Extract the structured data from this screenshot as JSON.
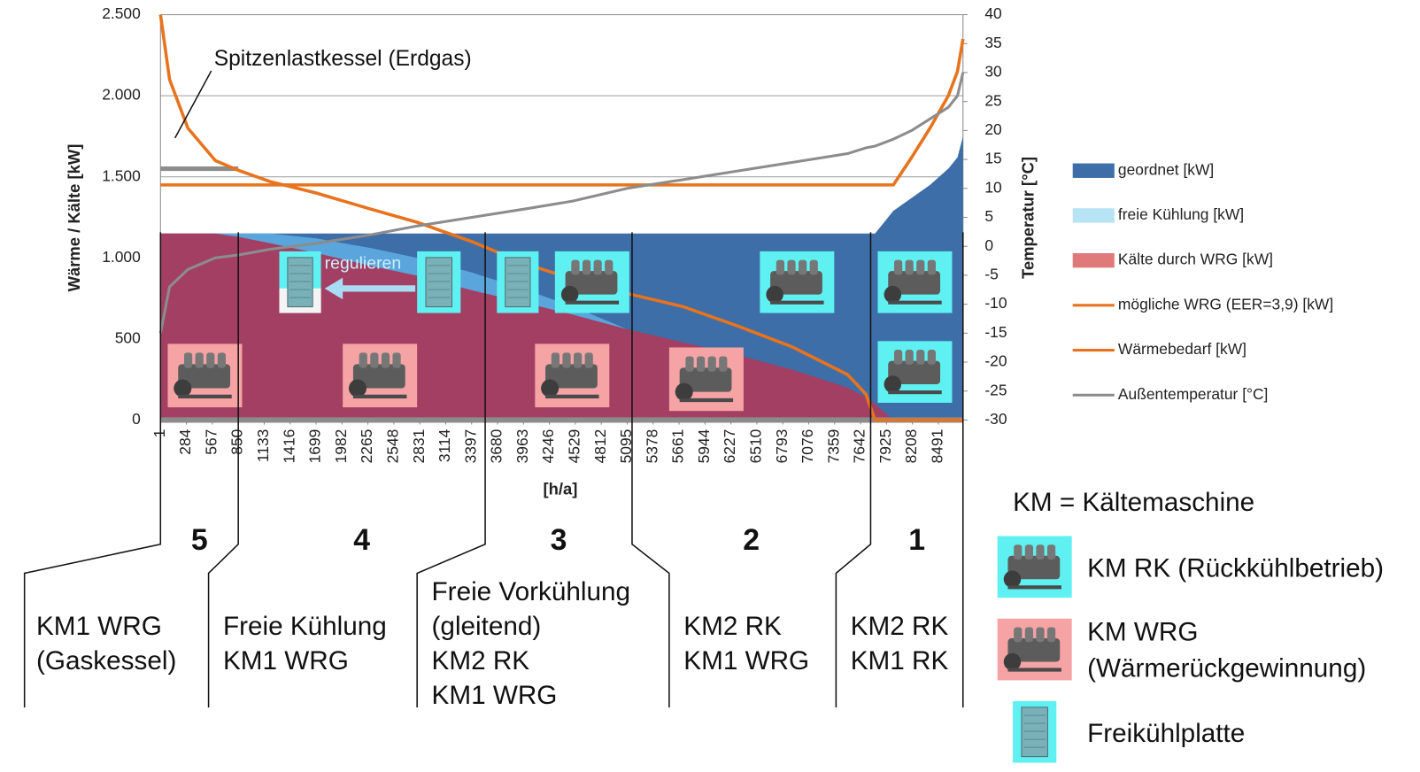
{
  "chart_data": {
    "type": "area-line",
    "y_label": "Wärme / Kälte [kW]",
    "y2_label": "Temperatur [°C]",
    "x_label": "[h/a]",
    "xlim": [
      1,
      8760
    ],
    "xticks": [
      1,
      284,
      567,
      850,
      1133,
      1416,
      1699,
      1982,
      2265,
      2548,
      2831,
      3114,
      3397,
      3680,
      3963,
      4246,
      4529,
      4812,
      5095,
      5378,
      5661,
      5944,
      6227,
      6510,
      6793,
      7076,
      7359,
      7642,
      7925,
      8208,
      8491
    ],
    "ylim": [
      0,
      2500
    ],
    "yticks": [
      {
        "value": 0,
        "label": "0"
      },
      {
        "value": 500,
        "label": "500"
      },
      {
        "value": 1000,
        "label": "1.000"
      },
      {
        "value": 1500,
        "label": "1.500"
      },
      {
        "value": 2000,
        "label": "2.000"
      },
      {
        "value": 2500,
        "label": "2.500"
      }
    ],
    "y2lim": [
      -30,
      40
    ],
    "y2ticks": [
      -30,
      -25,
      -20,
      -15,
      -10,
      -5,
      0,
      5,
      10,
      15,
      20,
      25,
      30,
      35,
      40
    ],
    "grid": true,
    "x": [
      1,
      100,
      300,
      600,
      850,
      1200,
      1700,
      2300,
      2800,
      3400,
      4000,
      4500,
      5095,
      5700,
      6300,
      6900,
      7500,
      7700,
      7800,
      8000,
      8200,
      8400,
      8600,
      8700,
      8760
    ],
    "series": [
      {
        "name": "geordnet [kW]",
        "kind": "area",
        "color": "#3d6ea8",
        "values": [
          1150,
          1150,
          1150,
          1150,
          1150,
          1150,
          1150,
          1150,
          1150,
          1150,
          1150,
          1150,
          1150,
          1150,
          1150,
          1150,
          1150,
          1150,
          1150,
          1290,
          1370,
          1450,
          1550,
          1620,
          1750
        ]
      },
      {
        "name": "freie Kühlung [kW]",
        "kind": "area",
        "color": "#5aa6dc",
        "values": [
          1150,
          1150,
          1150,
          1150,
          1150,
          1150,
          1120,
          1060,
          1000,
          910,
          800,
          700,
          560,
          null,
          null,
          null,
          null,
          null,
          null,
          null,
          null,
          null,
          null,
          null,
          null
        ]
      },
      {
        "name": "Kälte durch WRG [kW]",
        "kind": "area",
        "color": "#a33f62",
        "values": [
          1150,
          1150,
          1150,
          1150,
          1130,
          1090,
          1030,
          950,
          890,
          800,
          720,
          650,
          560,
          480,
          400,
          310,
          200,
          140,
          100,
          0,
          0,
          0,
          0,
          0,
          0
        ]
      },
      {
        "name": "mögliche WRG (EER=3,9) [kW]",
        "kind": "line",
        "color": "#e8731e",
        "values": [
          2500,
          2100,
          1800,
          1600,
          1540,
          1470,
          1400,
          1300,
          1220,
          1100,
          960,
          870,
          780,
          700,
          580,
          450,
          280,
          160,
          0,
          0,
          0,
          0,
          0,
          0,
          0
        ]
      },
      {
        "name": "Wärmebedarf [kW]",
        "kind": "line",
        "color": "#e8731e",
        "values": [
          1450,
          1450,
          1450,
          1450,
          1450,
          1450,
          1450,
          1450,
          1450,
          1450,
          1450,
          1450,
          1450,
          1450,
          1450,
          1450,
          1450,
          1450,
          1450,
          1450,
          1620,
          1800,
          2000,
          2150,
          2350
        ]
      },
      {
        "name": "Außentemperatur [°C]",
        "kind": "line",
        "axis": "y2",
        "color": "#8c8c8c",
        "values": [
          -15,
          -7,
          -4,
          -2,
          -1.5,
          -0.5,
          0.5,
          2,
          3.5,
          5,
          6.5,
          7.8,
          10,
          11.5,
          13,
          14.5,
          16,
          17,
          17.3,
          18.5,
          20,
          22,
          24,
          26,
          30
        ]
      }
    ],
    "peak_boiler": {
      "text": "Spitzenlastkessel (Erdgas)",
      "value": 1550,
      "x_range": [
        1,
        850
      ]
    },
    "regulate_label": "regulieren",
    "zone_boundaries": [
      1,
      850,
      3545,
      5148,
      7752,
      8760
    ],
    "zones": [
      {
        "number": 5,
        "lines": [
          "KM1  WRG",
          "(Gaskessel)"
        ]
      },
      {
        "number": 4,
        "lines": [
          "Freie Kühlung",
          "KM1  WRG"
        ]
      },
      {
        "number": 3,
        "lines": [
          "Freie Vorkühlung",
          "(gleitend)",
          "KM2  RK",
          "KM1  WRG"
        ]
      },
      {
        "number": 2,
        "lines": [
          "KM2  RK",
          "KM1  WRG"
        ]
      },
      {
        "number": 1,
        "lines": [
          "KM2  RK",
          "KM1  RK"
        ]
      }
    ],
    "key": {
      "title": "KM = Kältemaschine",
      "items": [
        {
          "icon": "engine-rk",
          "lines": [
            "KM RK (Rückkühlbetrieb)"
          ]
        },
        {
          "icon": "engine-wrg",
          "lines": [
            "KM WRG",
            "(Wärmerückgewinnung)"
          ]
        },
        {
          "icon": "plate",
          "lines": [
            "Freikühlplatte"
          ]
        }
      ]
    }
  }
}
